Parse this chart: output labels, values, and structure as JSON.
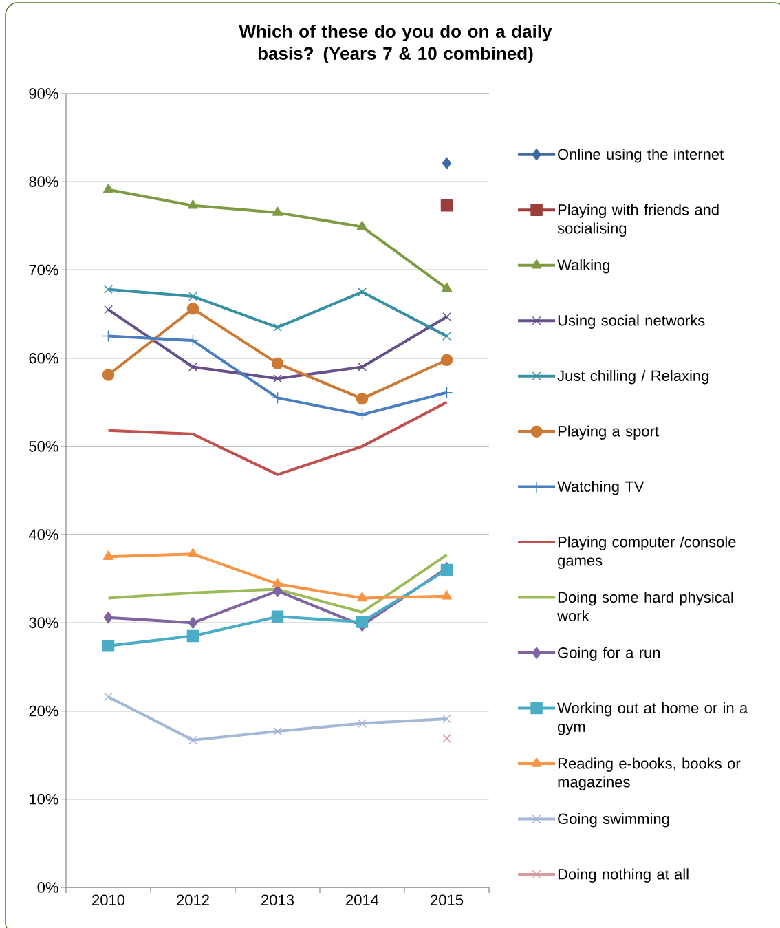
{
  "chart_data": {
    "type": "line",
    "title": "Which of these do you do on a daily basis? (Years 7 & 10 combined)",
    "categories": [
      "2010",
      "2012",
      "2013",
      "2014",
      "2015"
    ],
    "ylim": [
      0,
      90
    ],
    "yticks": [
      {
        "value": 0,
        "label": "0%"
      },
      {
        "value": 10,
        "label": "10%"
      },
      {
        "value": 20,
        "label": "20%"
      },
      {
        "value": 30,
        "label": "30%"
      },
      {
        "value": 40,
        "label": "40%"
      },
      {
        "value": 50,
        "label": "50%"
      },
      {
        "value": 60,
        "label": "60%"
      },
      {
        "value": 70,
        "label": "70%"
      },
      {
        "value": 80,
        "label": "80%"
      },
      {
        "value": 90,
        "label": "90%"
      }
    ],
    "grid": "y",
    "legend": "right",
    "series": [
      {
        "name": "Online using the internet",
        "color": "#3e6aa1",
        "marker": "diamond",
        "values": [
          null,
          null,
          null,
          null,
          82.1
        ]
      },
      {
        "name": "Playing with friends and socialising",
        "color": "#9c3e3b",
        "marker": "square",
        "values": [
          null,
          null,
          null,
          null,
          77.3
        ]
      },
      {
        "name": "Walking",
        "color": "#7f9a44",
        "marker": "triangle",
        "values": [
          79.1,
          77.3,
          76.5,
          74.9,
          67.9
        ]
      },
      {
        "name": "Using social networks",
        "color": "#65508a",
        "marker": "cross",
        "values": [
          65.5,
          59.0,
          57.7,
          59.0,
          64.7
        ]
      },
      {
        "name": "Just chilling / Relaxing",
        "color": "#3790a3",
        "marker": "cross",
        "values": [
          67.8,
          67.0,
          63.5,
          67.5,
          62.5
        ]
      },
      {
        "name": "Playing a sport",
        "color": "#cc7a33",
        "marker": "circle",
        "values": [
          58.1,
          65.6,
          59.4,
          55.4,
          59.8
        ]
      },
      {
        "name": "Watching TV",
        "color": "#4a7ebf",
        "marker": "plus",
        "values": [
          62.5,
          62.0,
          55.5,
          53.6,
          56.1
        ]
      },
      {
        "name": "Playing computer /console games",
        "color": "#c0504d",
        "marker": "none",
        "values": [
          51.8,
          51.4,
          46.8,
          50.0,
          55.0
        ]
      },
      {
        "name": "Doing some hard physical work",
        "color": "#9bbb59",
        "marker": "none",
        "values": [
          32.8,
          33.4,
          33.8,
          31.2,
          37.7
        ]
      },
      {
        "name": "Going for a run",
        "color": "#8064a2",
        "marker": "diamond",
        "values": [
          30.6,
          30.0,
          33.6,
          29.7,
          36.2
        ]
      },
      {
        "name": "Working out at home or in a gym",
        "color": "#4bacc6",
        "marker": "square",
        "values": [
          27.4,
          28.5,
          30.7,
          30.1,
          36.0
        ]
      },
      {
        "name": "Reading e-books, books or magazines",
        "color": "#f79646",
        "marker": "triangle",
        "values": [
          37.5,
          37.8,
          34.4,
          32.8,
          33.0
        ]
      },
      {
        "name": "Going swimming",
        "color": "#a5b6d6",
        "marker": "cross",
        "values": [
          21.6,
          16.7,
          17.7,
          18.6,
          19.1
        ]
      },
      {
        "name": "Doing nothing at all",
        "color": "#d69b9b",
        "marker": "cross",
        "values": [
          null,
          null,
          null,
          null,
          16.9
        ]
      }
    ]
  }
}
